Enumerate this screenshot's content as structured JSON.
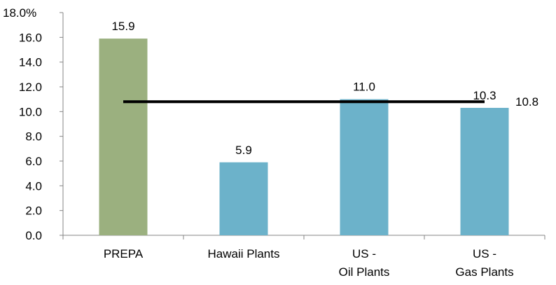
{
  "chart_data": {
    "type": "bar",
    "categories": [
      [
        "PREPA"
      ],
      [
        "Hawaii Plants"
      ],
      [
        "US -",
        "Oil Plants"
      ],
      [
        "US -",
        "Gas Plants"
      ]
    ],
    "values": [
      15.9,
      5.9,
      11.0,
      10.3
    ],
    "value_labels": [
      "15.9",
      "5.9",
      "11.0",
      "10.3"
    ],
    "bar_colors": [
      "#9bb07f",
      "#6cb2ca",
      "#6cb2ca",
      "#6cb2ca"
    ],
    "ylim": [
      0,
      18
    ],
    "yticks": [
      {
        "value": 0,
        "label": "0.0"
      },
      {
        "value": 2,
        "label": "2.0"
      },
      {
        "value": 4,
        "label": "4.0"
      },
      {
        "value": 6,
        "label": "6.0"
      },
      {
        "value": 8,
        "label": "8.0"
      },
      {
        "value": 10,
        "label": "10.0"
      },
      {
        "value": 12,
        "label": "12.0"
      },
      {
        "value": 14,
        "label": "14.0"
      },
      {
        "value": 16,
        "label": "16.0"
      },
      {
        "value": 18,
        "label": "18.0%"
      }
    ],
    "average_line": {
      "value": 10.8,
      "label": "10.8",
      "color": "#000000"
    },
    "grid": false,
    "legend": "none"
  }
}
